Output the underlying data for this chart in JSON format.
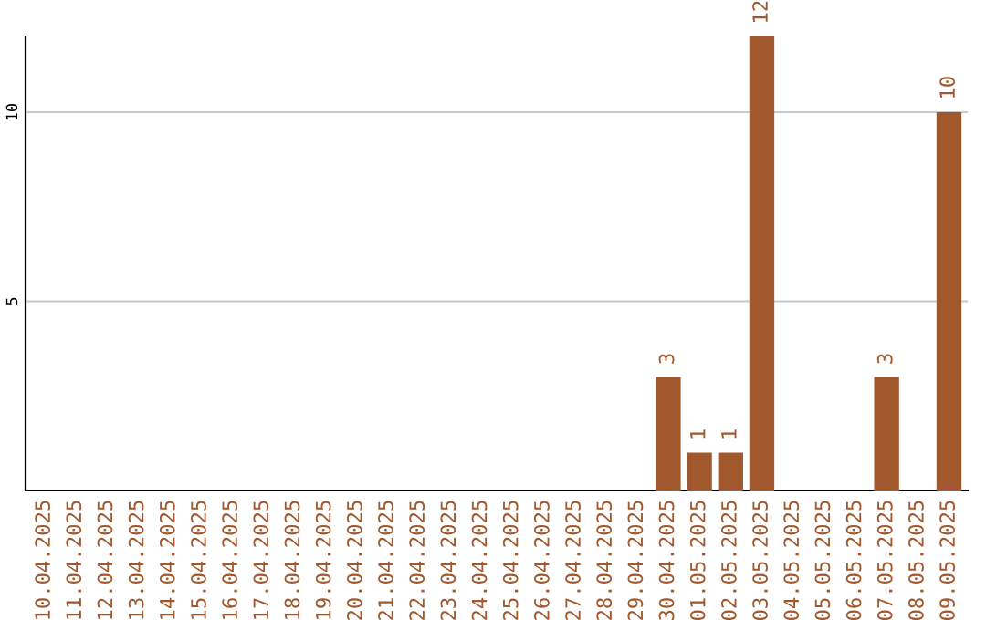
{
  "chart_data": {
    "type": "bar",
    "categories": [
      "10.04.2025",
      "11.04.2025",
      "12.04.2025",
      "13.04.2025",
      "14.04.2025",
      "15.04.2025",
      "16.04.2025",
      "17.04.2025",
      "18.04.2025",
      "19.04.2025",
      "20.04.2025",
      "21.04.2025",
      "22.04.2025",
      "23.04.2025",
      "24.04.2025",
      "25.04.2025",
      "26.04.2025",
      "27.04.2025",
      "28.04.2025",
      "29.04.2025",
      "30.04.2025",
      "01.05.2025",
      "02.05.2025",
      "03.05.2025",
      "04.05.2025",
      "05.05.2025",
      "06.05.2025",
      "07.05.2025",
      "08.05.2025",
      "09.05.2025"
    ],
    "values": [
      0,
      0,
      0,
      0,
      0,
      0,
      0,
      0,
      0,
      0,
      0,
      0,
      0,
      0,
      0,
      0,
      0,
      0,
      0,
      0,
      3,
      1,
      1,
      12,
      0,
      0,
      0,
      3,
      0,
      10
    ],
    "value_labels": [
      null,
      null,
      null,
      null,
      null,
      null,
      null,
      null,
      null,
      null,
      null,
      null,
      null,
      null,
      null,
      null,
      null,
      null,
      null,
      null,
      "3",
      "1",
      "1",
      "12",
      null,
      null,
      null,
      "3",
      null,
      "10"
    ],
    "color": "#a0582c",
    "ylim": [
      0,
      12
    ],
    "yticks": [
      5,
      10
    ],
    "grid": "y"
  }
}
